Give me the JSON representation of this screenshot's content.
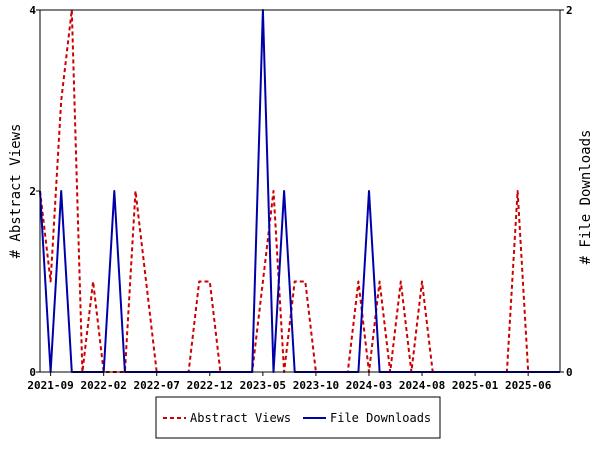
{
  "chart_data": {
    "type": "line",
    "title": "",
    "ylabel_left": "# Abstract Views",
    "ylabel_right": "# File Downloads",
    "ylim_left": [
      0,
      4
    ],
    "ylim_right": [
      0,
      2
    ],
    "yticks_left": [
      "0",
      "2",
      "4"
    ],
    "yticks_right": [
      "0",
      "2"
    ],
    "x_start": "2021-08",
    "x_end": "2025-09",
    "xtick_labels": [
      "2021-09",
      "2022-02",
      "2022-07",
      "2022-12",
      "2023-05",
      "2023-10",
      "2024-03",
      "2024-08",
      "2025-01",
      "2025-06"
    ],
    "grid": false,
    "legend_position": "bottom",
    "series": [
      {
        "name": "Abstract Views",
        "axis": "left",
        "color": "#cc0000",
        "style": "dashed",
        "points": [
          [
            "2021-08",
            2
          ],
          [
            "2021-09",
            1
          ],
          [
            "2021-10",
            3
          ],
          [
            "2021-11",
            4
          ],
          [
            "2021-12",
            0
          ],
          [
            "2022-01",
            1
          ],
          [
            "2022-02",
            0
          ],
          [
            "2022-03",
            0
          ],
          [
            "2022-04",
            0
          ],
          [
            "2022-05",
            2
          ],
          [
            "2022-06",
            1
          ],
          [
            "2022-07",
            0
          ],
          [
            "2022-08",
            0
          ],
          [
            "2022-09",
            0
          ],
          [
            "2022-10",
            0
          ],
          [
            "2022-11",
            1
          ],
          [
            "2022-12",
            1
          ],
          [
            "2023-01",
            0
          ],
          [
            "2023-02",
            0
          ],
          [
            "2023-03",
            0
          ],
          [
            "2023-04",
            0
          ],
          [
            "2023-05",
            1
          ],
          [
            "2023-06",
            2
          ],
          [
            "2023-07",
            0
          ],
          [
            "2023-08",
            1
          ],
          [
            "2023-09",
            1
          ],
          [
            "2023-10",
            0
          ],
          [
            "2023-11",
            0
          ],
          [
            "2023-12",
            0
          ],
          [
            "2024-01",
            0
          ],
          [
            "2024-02",
            1
          ],
          [
            "2024-03",
            0
          ],
          [
            "2024-04",
            1
          ],
          [
            "2024-05",
            0
          ],
          [
            "2024-06",
            1
          ],
          [
            "2024-07",
            0
          ],
          [
            "2024-08",
            1
          ],
          [
            "2024-09",
            0
          ],
          [
            "2024-10",
            0
          ],
          [
            "2024-11",
            0
          ],
          [
            "2024-12",
            0
          ],
          [
            "2025-01",
            0
          ],
          [
            "2025-02",
            0
          ],
          [
            "2025-03",
            0
          ],
          [
            "2025-04",
            0
          ],
          [
            "2025-05",
            2
          ],
          [
            "2025-06",
            0
          ],
          [
            "2025-07",
            0
          ],
          [
            "2025-08",
            0
          ],
          [
            "2025-09",
            0
          ]
        ]
      },
      {
        "name": "File Downloads",
        "axis": "right",
        "color": "#0000aa",
        "style": "solid",
        "points": [
          [
            "2021-08",
            1
          ],
          [
            "2021-09",
            0
          ],
          [
            "2021-10",
            1
          ],
          [
            "2021-11",
            0
          ],
          [
            "2021-12",
            0
          ],
          [
            "2022-01",
            0
          ],
          [
            "2022-02",
            0
          ],
          [
            "2022-03",
            1
          ],
          [
            "2022-04",
            0
          ],
          [
            "2022-05",
            0
          ],
          [
            "2022-06",
            0
          ],
          [
            "2022-07",
            0
          ],
          [
            "2022-08",
            0
          ],
          [
            "2022-09",
            0
          ],
          [
            "2022-10",
            0
          ],
          [
            "2022-11",
            0
          ],
          [
            "2022-12",
            0
          ],
          [
            "2023-01",
            0
          ],
          [
            "2023-02",
            0
          ],
          [
            "2023-03",
            0
          ],
          [
            "2023-04",
            0
          ],
          [
            "2023-05",
            2
          ],
          [
            "2023-06",
            0
          ],
          [
            "2023-07",
            1
          ],
          [
            "2023-08",
            0
          ],
          [
            "2023-09",
            0
          ],
          [
            "2023-10",
            0
          ],
          [
            "2023-11",
            0
          ],
          [
            "2023-12",
            0
          ],
          [
            "2024-01",
            0
          ],
          [
            "2024-02",
            0
          ],
          [
            "2024-03",
            1
          ],
          [
            "2024-04",
            0
          ],
          [
            "2024-05",
            0
          ],
          [
            "2024-06",
            0
          ],
          [
            "2024-07",
            0
          ],
          [
            "2024-08",
            0
          ],
          [
            "2024-09",
            0
          ],
          [
            "2024-10",
            0
          ],
          [
            "2024-11",
            0
          ],
          [
            "2024-12",
            0
          ],
          [
            "2025-01",
            0
          ],
          [
            "2025-02",
            0
          ],
          [
            "2025-03",
            0
          ],
          [
            "2025-04",
            0
          ],
          [
            "2025-05",
            0
          ],
          [
            "2025-06",
            0
          ],
          [
            "2025-07",
            0
          ],
          [
            "2025-08",
            0
          ],
          [
            "2025-09",
            0
          ]
        ]
      }
    ]
  }
}
